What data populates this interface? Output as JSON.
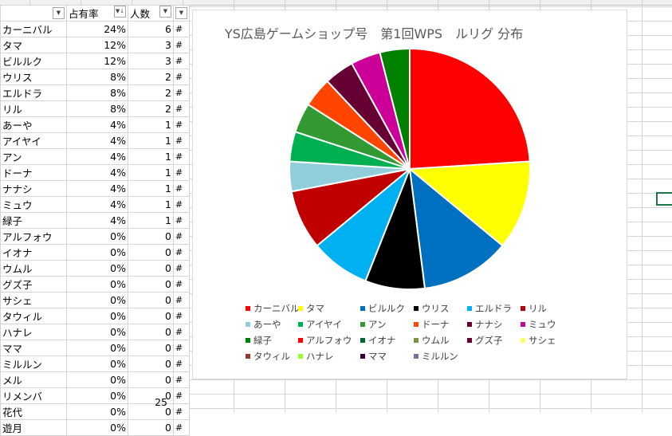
{
  "columns": {
    "pct_header": "占有率",
    "count_header": "人数"
  },
  "rows": [
    {
      "name": "カーニバル",
      "pct": "24%",
      "count": "6",
      "flag": "#"
    },
    {
      "name": "タマ",
      "pct": "12%",
      "count": "3",
      "flag": "#"
    },
    {
      "name": "ビルルク",
      "pct": "12%",
      "count": "3",
      "flag": "#"
    },
    {
      "name": "ウリス",
      "pct": "8%",
      "count": "2",
      "flag": "#"
    },
    {
      "name": "エルドラ",
      "pct": "8%",
      "count": "2",
      "flag": "#"
    },
    {
      "name": "リル",
      "pct": "8%",
      "count": "2",
      "flag": "#"
    },
    {
      "name": "あーや",
      "pct": "4%",
      "count": "1",
      "flag": "#"
    },
    {
      "name": "アイヤイ",
      "pct": "4%",
      "count": "1",
      "flag": "#"
    },
    {
      "name": "アン",
      "pct": "4%",
      "count": "1",
      "flag": "#"
    },
    {
      "name": "ドーナ",
      "pct": "4%",
      "count": "1",
      "flag": "#"
    },
    {
      "name": "ナナシ",
      "pct": "4%",
      "count": "1",
      "flag": "#"
    },
    {
      "name": "ミュウ",
      "pct": "4%",
      "count": "1",
      "flag": "#"
    },
    {
      "name": "緑子",
      "pct": "4%",
      "count": "1",
      "flag": "#"
    },
    {
      "name": "アルフォウ",
      "pct": "0%",
      "count": "0",
      "flag": "#"
    },
    {
      "name": "イオナ",
      "pct": "0%",
      "count": "0",
      "flag": "#"
    },
    {
      "name": "ウムル",
      "pct": "0%",
      "count": "0",
      "flag": "#"
    },
    {
      "name": "グズ子",
      "pct": "0%",
      "count": "0",
      "flag": "#"
    },
    {
      "name": "サシェ",
      "pct": "0%",
      "count": "0",
      "flag": "#"
    },
    {
      "name": "タウィル",
      "pct": "0%",
      "count": "0",
      "flag": "#"
    },
    {
      "name": "ハナレ",
      "pct": "0%",
      "count": "0",
      "flag": "#"
    },
    {
      "name": "ママ",
      "pct": "0%",
      "count": "0",
      "flag": "#"
    },
    {
      "name": "ミルルン",
      "pct": "0%",
      "count": "0",
      "flag": "#"
    },
    {
      "name": "メル",
      "pct": "0%",
      "count": "0",
      "flag": "#"
    },
    {
      "name": "リメンバ",
      "pct": "0%",
      "count": "0",
      "flag": "#"
    },
    {
      "name": "花代",
      "pct": "0%",
      "count": "0",
      "flag": "#"
    },
    {
      "name": "遊月",
      "pct": "0%",
      "count": "0",
      "flag": "#"
    }
  ],
  "total_count": "25",
  "chart_data": {
    "type": "pie",
    "title": "YS広島ゲームショップ号　第1回WPS　ルリグ 分布",
    "legend_position": "bottom",
    "labels": [
      "カーニバル",
      "タマ",
      "ビルルク",
      "ウリス",
      "エルドラ",
      "リル",
      "あーや",
      "アイヤイ",
      "アン",
      "ドーナ",
      "ナナシ",
      "ミュウ",
      "緑子",
      "アルフォウ",
      "イオナ",
      "ウムル",
      "グズ子",
      "サシェ",
      "タウィル",
      "ハナレ",
      "ママ",
      "ミルルン"
    ],
    "values": [
      6,
      3,
      3,
      2,
      2,
      2,
      1,
      1,
      1,
      1,
      1,
      1,
      1,
      0,
      0,
      0,
      0,
      0,
      0,
      0,
      0,
      0
    ],
    "colors": [
      "#ff0000",
      "#ffff00",
      "#0070c0",
      "#000000",
      "#00b0f0",
      "#c00000",
      "#92cddc",
      "#00b050",
      "#339933",
      "#ff4500",
      "#660033",
      "#cc0099",
      "#008000",
      "#ff0000",
      "#006633",
      "#77933c",
      "#660033",
      "#ffff66",
      "#953735",
      "#99ff33",
      "#330033",
      "#7f6f9f"
    ]
  }
}
